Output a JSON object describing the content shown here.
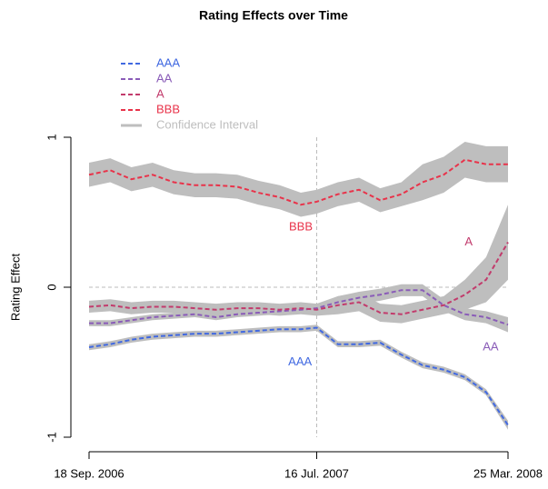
{
  "chart_data": {
    "type": "line",
    "title": "Rating Effects over Time",
    "y_label": "Rating Effect",
    "x": [
      "2006-09-18",
      "2006-10-16",
      "2006-11-13",
      "2006-12-11",
      "2007-01-08",
      "2007-02-05",
      "2007-03-05",
      "2007-04-02",
      "2007-04-30",
      "2007-05-28",
      "2007-06-25",
      "2007-07-16",
      "2007-08-13",
      "2007-09-10",
      "2007-10-08",
      "2007-11-05",
      "2007-12-03",
      "2007-12-31",
      "2008-01-28",
      "2008-02-25",
      "2008-03-25"
    ],
    "xlim": [
      "2006-09-18",
      "2008-03-25"
    ],
    "xticks": [
      {
        "value": "2006-09-18",
        "label": "18 Sep. 2006"
      },
      {
        "value": "2007-07-16",
        "label": "16 Jul. 2007"
      },
      {
        "value": "2008-03-25",
        "label": "25 Mar. 2008"
      }
    ],
    "ylim": [
      -1.05,
      1.05
    ],
    "yticks": [
      -1,
      0,
      1
    ],
    "vlines": [
      "2007-07-16"
    ],
    "hlines": [
      0
    ],
    "ci_label": "Confidence Interval",
    "ci_color": "#bebebe",
    "series": [
      {
        "name": "AAA",
        "color": "#4169e1",
        "values": [
          -0.4,
          -0.38,
          -0.35,
          -0.33,
          -0.32,
          -0.31,
          -0.31,
          -0.3,
          -0.29,
          -0.28,
          -0.28,
          -0.27,
          -0.38,
          -0.38,
          -0.37,
          -0.45,
          -0.52,
          -0.55,
          -0.6,
          -0.7,
          -0.92
        ],
        "lower": [
          -0.42,
          -0.4,
          -0.37,
          -0.35,
          -0.34,
          -0.33,
          -0.33,
          -0.32,
          -0.31,
          -0.3,
          -0.3,
          -0.29,
          -0.4,
          -0.4,
          -0.39,
          -0.47,
          -0.54,
          -0.57,
          -0.62,
          -0.72,
          -0.95
        ],
        "upper": [
          -0.38,
          -0.36,
          -0.33,
          -0.31,
          -0.3,
          -0.29,
          -0.29,
          -0.28,
          -0.27,
          -0.26,
          -0.26,
          -0.25,
          -0.36,
          -0.36,
          -0.35,
          -0.43,
          -0.5,
          -0.53,
          -0.58,
          -0.68,
          -0.89
        ]
      },
      {
        "name": "AA",
        "color": "#8a5cb8",
        "values": [
          -0.24,
          -0.24,
          -0.22,
          -0.2,
          -0.19,
          -0.18,
          -0.2,
          -0.18,
          -0.17,
          -0.16,
          -0.15,
          -0.14,
          -0.1,
          -0.07,
          -0.05,
          -0.02,
          -0.02,
          -0.12,
          -0.18,
          -0.2,
          -0.25
        ],
        "lower": [
          -0.26,
          -0.26,
          -0.24,
          -0.22,
          -0.21,
          -0.2,
          -0.22,
          -0.2,
          -0.19,
          -0.18,
          -0.17,
          -0.16,
          -0.14,
          -0.11,
          -0.09,
          -0.06,
          -0.06,
          -0.16,
          -0.22,
          -0.24,
          -0.3
        ],
        "upper": [
          -0.22,
          -0.22,
          -0.2,
          -0.18,
          -0.17,
          -0.16,
          -0.18,
          -0.16,
          -0.15,
          -0.14,
          -0.13,
          -0.12,
          -0.06,
          -0.03,
          -0.01,
          0.02,
          0.02,
          -0.08,
          -0.14,
          -0.16,
          -0.2
        ]
      },
      {
        "name": "A",
        "color": "#c23b6c",
        "values": [
          -0.13,
          -0.12,
          -0.14,
          -0.13,
          -0.13,
          -0.14,
          -0.15,
          -0.14,
          -0.14,
          -0.15,
          -0.14,
          -0.15,
          -0.12,
          -0.1,
          -0.17,
          -0.18,
          -0.15,
          -0.12,
          -0.05,
          0.05,
          0.3
        ],
        "lower": [
          -0.17,
          -0.16,
          -0.18,
          -0.17,
          -0.17,
          -0.18,
          -0.19,
          -0.18,
          -0.18,
          -0.19,
          -0.18,
          -0.19,
          -0.18,
          -0.16,
          -0.23,
          -0.24,
          -0.21,
          -0.18,
          -0.15,
          -0.1,
          0.05
        ],
        "upper": [
          -0.09,
          -0.08,
          -0.1,
          -0.09,
          -0.09,
          -0.1,
          -0.11,
          -0.1,
          -0.1,
          -0.11,
          -0.1,
          -0.11,
          -0.06,
          -0.04,
          -0.11,
          -0.12,
          -0.09,
          -0.06,
          0.05,
          0.2,
          0.55
        ]
      },
      {
        "name": "BBB",
        "color": "#e8334a",
        "values": [
          0.75,
          0.78,
          0.72,
          0.75,
          0.7,
          0.68,
          0.68,
          0.67,
          0.63,
          0.6,
          0.55,
          0.57,
          0.62,
          0.65,
          0.58,
          0.62,
          0.7,
          0.75,
          0.85,
          0.82,
          0.82
        ],
        "lower": [
          0.67,
          0.7,
          0.64,
          0.67,
          0.62,
          0.6,
          0.6,
          0.59,
          0.55,
          0.52,
          0.47,
          0.49,
          0.54,
          0.57,
          0.5,
          0.54,
          0.58,
          0.63,
          0.73,
          0.7,
          0.7
        ],
        "upper": [
          0.83,
          0.86,
          0.8,
          0.83,
          0.78,
          0.76,
          0.76,
          0.75,
          0.71,
          0.68,
          0.63,
          0.65,
          0.7,
          0.73,
          0.66,
          0.7,
          0.82,
          0.87,
          0.97,
          0.94,
          0.94
        ]
      }
    ],
    "annotations": [
      {
        "text": "BBB",
        "x": "2007-06-25",
        "y": 0.4,
        "color": "#e8334a"
      },
      {
        "text": "A",
        "x": "2008-02-02",
        "y": 0.3,
        "color": "#c23b6c"
      },
      {
        "text": "AA",
        "x": "2008-03-02",
        "y": -0.4,
        "color": "#8a5cb8"
      },
      {
        "text": "AAA",
        "x": "2007-06-24",
        "y": -0.5,
        "color": "#4169e1"
      }
    ]
  }
}
